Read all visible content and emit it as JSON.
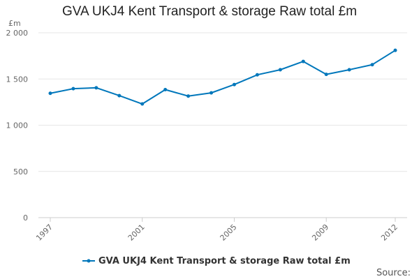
{
  "chart_data": {
    "type": "line",
    "title": "GVA UKJ4 Kent Transport & storage Raw total £m",
    "ylabel": "£m",
    "xlabel": "",
    "x": [
      1997,
      1998,
      1999,
      2000,
      2001,
      2002,
      2003,
      2004,
      2005,
      2006,
      2007,
      2008,
      2009,
      2010,
      2011,
      2012
    ],
    "x_tick_labels": [
      "1997",
      "2001",
      "2005",
      "2009",
      "2012"
    ],
    "y_tick_labels": [
      "0",
      "500",
      "1 000",
      "1 500",
      "2 000"
    ],
    "y_ticks": [
      0,
      500,
      1000,
      1500,
      2000
    ],
    "ylim": [
      0,
      2000
    ],
    "series": [
      {
        "name": "GVA UKJ4 Kent Transport & storage Raw total £m",
        "color": "#0077bb",
        "values": [
          1345,
          1395,
          1405,
          1320,
          1230,
          1385,
          1315,
          1350,
          1440,
          1545,
          1600,
          1690,
          1550,
          1600,
          1655,
          1810
        ]
      }
    ],
    "grid": true,
    "legend_position": "bottom-center"
  },
  "footer": {
    "source_label": "Source:"
  }
}
